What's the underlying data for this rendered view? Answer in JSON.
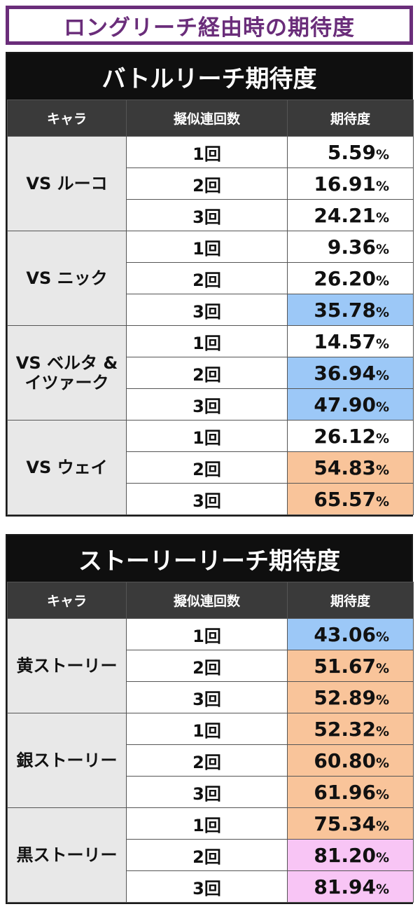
{
  "page_title": "ロングリーチ経由時の期待度",
  "sections": [
    {
      "title": "バトルリーチ期待度",
      "headers": [
        "キャラ",
        "擬似連回数",
        "期待度"
      ],
      "groups": [
        {
          "chara": "VS ルーコ",
          "rows": [
            {
              "count": "1回",
              "value": "5.59",
              "color": "white"
            },
            {
              "count": "2回",
              "value": "16.91",
              "color": "white"
            },
            {
              "count": "3回",
              "value": "24.21",
              "color": "white"
            }
          ]
        },
        {
          "chara": "VS ニック",
          "rows": [
            {
              "count": "1回",
              "value": "9.36",
              "color": "white"
            },
            {
              "count": "2回",
              "value": "26.20",
              "color": "white"
            },
            {
              "count": "3回",
              "value": "35.78",
              "color": "blue"
            }
          ]
        },
        {
          "chara": "VS ベルタ & イツァーク",
          "rows": [
            {
              "count": "1回",
              "value": "14.57",
              "color": "white"
            },
            {
              "count": "2回",
              "value": "36.94",
              "color": "blue"
            },
            {
              "count": "3回",
              "value": "47.90",
              "color": "blue"
            }
          ]
        },
        {
          "chara": "VS ウェイ",
          "rows": [
            {
              "count": "1回",
              "value": "26.12",
              "color": "white"
            },
            {
              "count": "2回",
              "value": "54.83",
              "color": "orange"
            },
            {
              "count": "3回",
              "value": "65.57",
              "color": "orange"
            }
          ]
        }
      ]
    },
    {
      "title": "ストーリーリーチ期待度",
      "headers": [
        "キャラ",
        "擬似連回数",
        "期待度"
      ],
      "groups": [
        {
          "chara": "黄ストーリー",
          "rows": [
            {
              "count": "1回",
              "value": "43.06",
              "color": "blue"
            },
            {
              "count": "2回",
              "value": "51.67",
              "color": "orange"
            },
            {
              "count": "3回",
              "value": "52.89",
              "color": "orange"
            }
          ]
        },
        {
          "chara": "銀ストーリー",
          "rows": [
            {
              "count": "1回",
              "value": "52.32",
              "color": "orange"
            },
            {
              "count": "2回",
              "value": "60.80",
              "color": "orange"
            },
            {
              "count": "3回",
              "value": "61.96",
              "color": "orange"
            }
          ]
        },
        {
          "chara": "黒ストーリー",
          "rows": [
            {
              "count": "1回",
              "value": "75.34",
              "color": "orange"
            },
            {
              "count": "2回",
              "value": "81.20",
              "color": "pink"
            },
            {
              "count": "3回",
              "value": "81.94",
              "color": "pink"
            }
          ]
        }
      ]
    }
  ],
  "percent_sign": "%",
  "colors": {
    "title_purple": "#6a2d7a",
    "blue": "#9cc8f7",
    "orange": "#f9c49a",
    "pink": "#f8c5f5",
    "header": "#3a3a3a",
    "chara_bg": "#e8e8e8"
  }
}
